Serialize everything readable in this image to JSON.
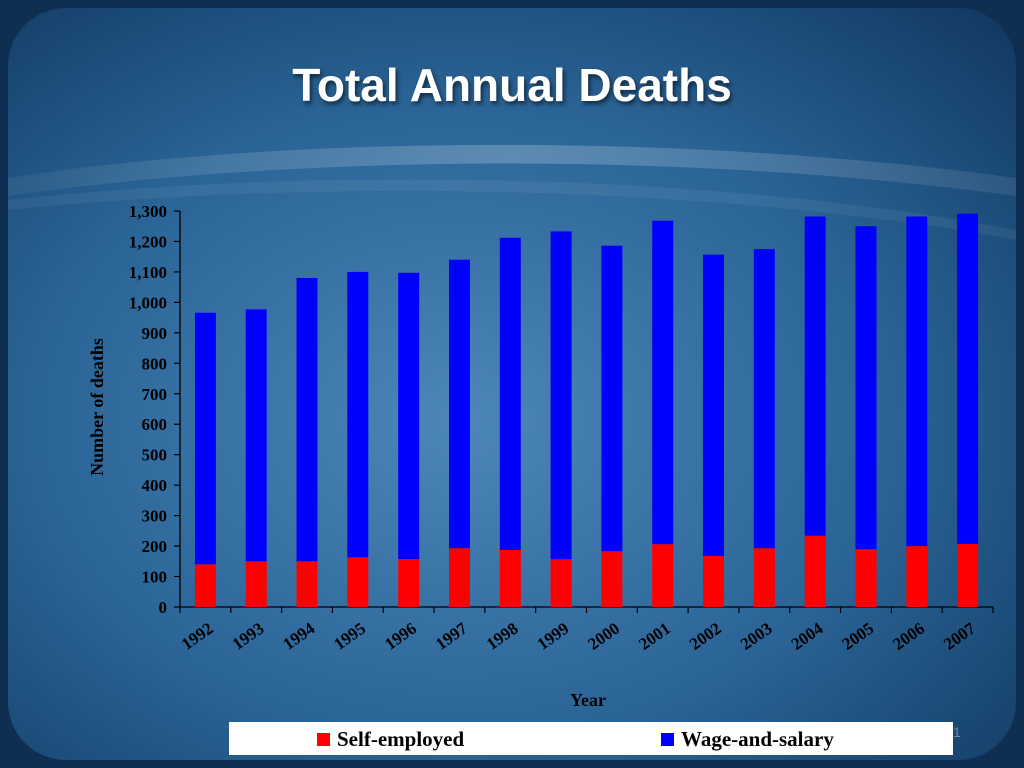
{
  "slide": {
    "title": "Total Annual Deaths",
    "slide_number": "1"
  },
  "colors": {
    "self_employed": "#ff0000",
    "wage_and_salary": "#0000ff"
  },
  "chart_data": {
    "type": "bar",
    "stacked": true,
    "title": "",
    "xlabel": "Year",
    "ylabel": "Number of deaths",
    "ylim": [
      0,
      1300
    ],
    "yticks": [
      "0",
      "100",
      "200",
      "300",
      "400",
      "500",
      "600",
      "700",
      "800",
      "900",
      "1,000",
      "1,100",
      "1,200",
      "1,300"
    ],
    "categories": [
      "1992",
      "1993",
      "1994",
      "1995",
      "1996",
      "1997",
      "1998",
      "1999",
      "2000",
      "2001",
      "2002",
      "2003",
      "2004",
      "2005",
      "2006",
      "2007"
    ],
    "series": [
      {
        "name": "Self-employed",
        "color": "#ff0000",
        "values": [
          140,
          150,
          150,
          163,
          157,
          193,
          187,
          157,
          183,
          206,
          168,
          193,
          234,
          190,
          200,
          207
        ]
      },
      {
        "name": "Wage-and-salary",
        "color": "#0000ff",
        "values": [
          826,
          827,
          930,
          937,
          940,
          947,
          1025,
          1076,
          1003,
          1062,
          989,
          982,
          1048,
          1060,
          1082,
          1084
        ]
      }
    ],
    "legend_position": "bottom",
    "grid": false
  }
}
